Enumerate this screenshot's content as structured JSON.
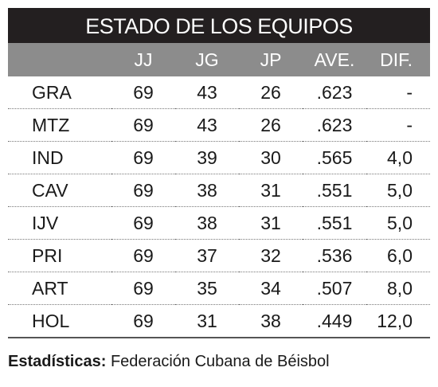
{
  "header": {
    "title": "ESTADO DE LOS EQUIPOS"
  },
  "table": {
    "columns": [
      "",
      "JJ",
      "JG",
      "JP",
      "AVE.",
      "DIF."
    ],
    "rows": [
      [
        "GRA",
        "69",
        "43",
        "26",
        ".623",
        "-"
      ],
      [
        "MTZ",
        "69",
        "43",
        "26",
        ".623",
        "-"
      ],
      [
        "IND",
        "69",
        "39",
        "30",
        ".565",
        "4,0"
      ],
      [
        "CAV",
        "69",
        "38",
        "31",
        ".551",
        "5,0"
      ],
      [
        "IJV",
        "69",
        "38",
        "31",
        ".551",
        "5,0"
      ],
      [
        "PRI",
        "69",
        "37",
        "32",
        ".536",
        "6,0"
      ],
      [
        "ART",
        "69",
        "35",
        "34",
        ".507",
        "8,0"
      ],
      [
        "HOL",
        "69",
        "31",
        "38",
        ".449",
        "12,0"
      ]
    ]
  },
  "footer": {
    "label": "Estadísticas:",
    "source": "Federación Cubana de Béisbol"
  }
}
